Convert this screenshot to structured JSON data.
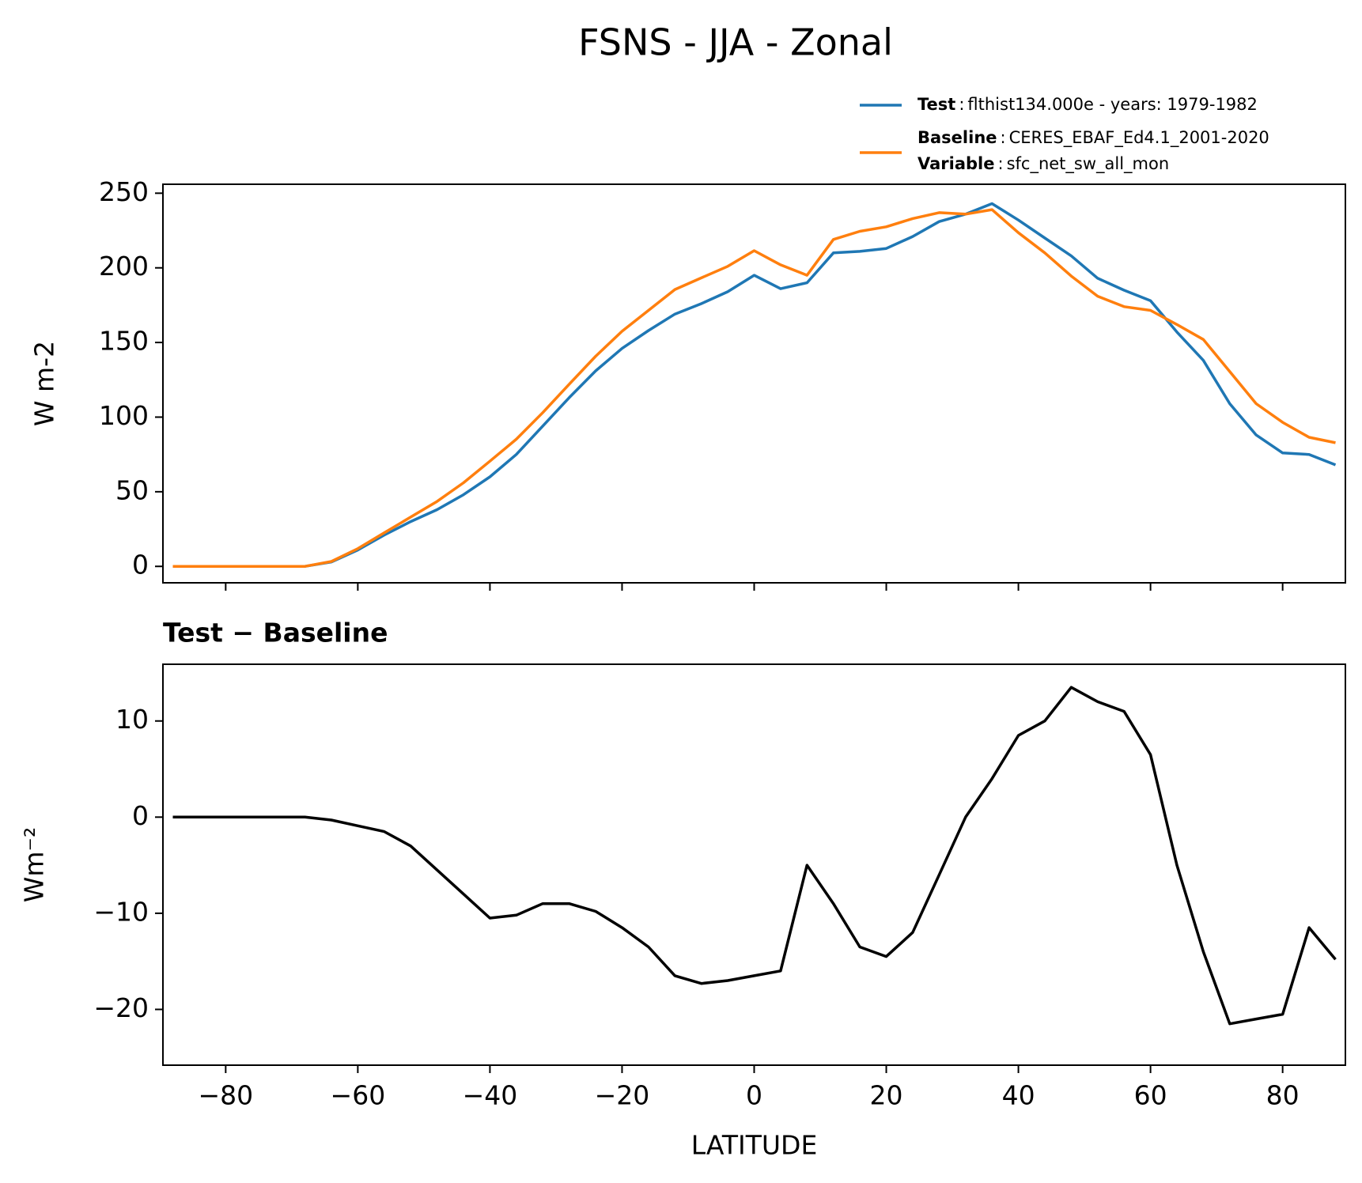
{
  "chart_data": [
    {
      "type": "line",
      "title": "FSNS - JJA - Zonal",
      "ylabel": "W m-2",
      "xlim": [
        -89.5,
        89.5
      ],
      "ylim": [
        -11,
        256
      ],
      "yticks": [
        0,
        50,
        100,
        150,
        200,
        250
      ],
      "legend_separator": ":",
      "x": [
        -88,
        -84,
        -80,
        -76,
        -72,
        -68,
        -64,
        -60,
        -56,
        -52,
        -48,
        -44,
        -40,
        -36,
        -32,
        -28,
        -24,
        -20,
        -16,
        -12,
        -8,
        -4,
        0,
        4,
        8,
        12,
        16,
        20,
        24,
        28,
        32,
        36,
        40,
        44,
        48,
        52,
        56,
        60,
        64,
        68,
        72,
        76,
        80,
        84,
        88
      ],
      "series": [
        {
          "name": "Test",
          "description": "flthist134.000e - years: 1979-1982",
          "color": "#1f77b4",
          "values": [
            0,
            0,
            0,
            0,
            0,
            0,
            3,
            11,
            21,
            30,
            38,
            48,
            60,
            75,
            94,
            113,
            131,
            146,
            158,
            169,
            176,
            184,
            195,
            186,
            190,
            210,
            211,
            213,
            221,
            231,
            236,
            243,
            232,
            220,
            208,
            193,
            185,
            178,
            157,
            138,
            109,
            88,
            76,
            75,
            68
          ]
        },
        {
          "name": "Baseline",
          "description": "CERES_EBAF_Ed4.1_2001-2020",
          "color": "#ff7f0e",
          "values": [
            0,
            0,
            0,
            0,
            0,
            0,
            3.3,
            11.9,
            22.5,
            33,
            43.5,
            56,
            70.5,
            85.2,
            103,
            122,
            140.8,
            157.5,
            171.5,
            185.5,
            193.3,
            201,
            211.5,
            202,
            195,
            219,
            224.5,
            227.5,
            233,
            237,
            236,
            239,
            223.5,
            210,
            194.5,
            181,
            174,
            171.5,
            162,
            152,
            130.5,
            109,
            96.5,
            86.5,
            82.8
          ]
        }
      ],
      "legend_note": {
        "name": "Variable",
        "description": "sfc_net_sw_all_mon"
      }
    },
    {
      "type": "line",
      "title": "Test − Baseline",
      "ylabel": "Wm⁻²",
      "xlabel": "LATITUDE",
      "xlim": [
        -89.5,
        89.5
      ],
      "ylim": [
        -25.8,
        15.9
      ],
      "xticks": [
        {
          "value": -80,
          "label": "−80"
        },
        {
          "value": -60,
          "label": "−60"
        },
        {
          "value": -40,
          "label": "−40"
        },
        {
          "value": -20,
          "label": "−20"
        },
        0,
        20,
        40,
        60,
        80
      ],
      "yticks": [
        {
          "value": -20,
          "label": "−20"
        },
        {
          "value": -10,
          "label": "−10"
        },
        0,
        10
      ],
      "x": [
        -88,
        -84,
        -80,
        -76,
        -72,
        -68,
        -64,
        -60,
        -56,
        -52,
        -48,
        -44,
        -40,
        -36,
        -32,
        -28,
        -24,
        -20,
        -16,
        -12,
        -8,
        -4,
        0,
        4,
        8,
        12,
        16,
        20,
        24,
        28,
        32,
        36,
        40,
        44,
        48,
        52,
        56,
        60,
        64,
        68,
        72,
        76,
        80,
        84,
        88
      ],
      "series": [
        {
          "color": "#000000",
          "values": [
            0,
            0,
            0,
            0,
            0,
            0,
            -0.3,
            -0.9,
            -1.5,
            -3,
            -5.5,
            -8,
            -10.5,
            -10.2,
            -9,
            -9,
            -9.8,
            -11.5,
            -13.5,
            -16.5,
            -17.3,
            -17,
            -16.5,
            -16,
            -5,
            -9,
            -13.5,
            -14.5,
            -12,
            -6,
            0,
            4,
            8.5,
            10,
            13.5,
            12,
            11,
            6.5,
            -5,
            -14,
            -21.5,
            -21,
            -20.5,
            -11.5,
            -14.8
          ]
        }
      ]
    }
  ]
}
